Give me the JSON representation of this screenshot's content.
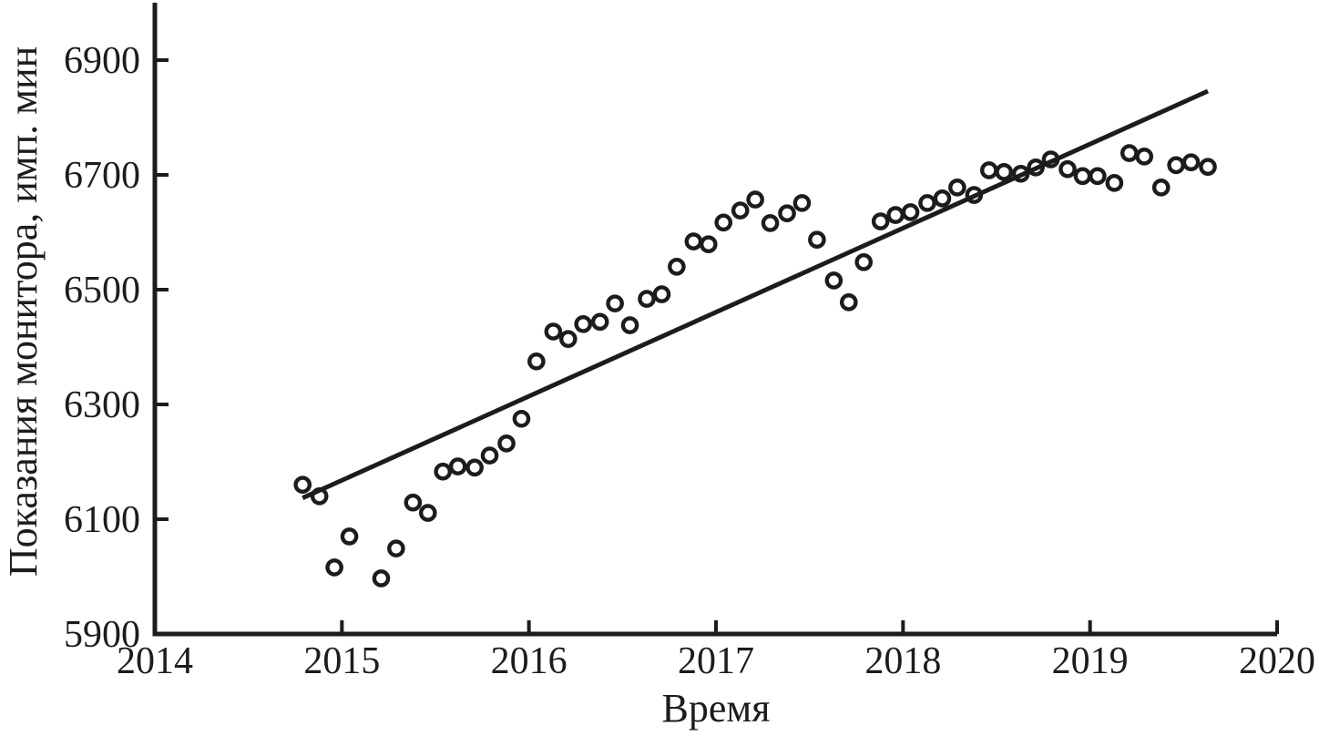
{
  "chart_data": {
    "type": "scatter",
    "title": "",
    "xlabel": "Время",
    "ylabel": "Показания монитора, имп. мин",
    "xlim": [
      2014,
      2020
    ],
    "ylim": [
      5900,
      7000
    ],
    "x_ticks": [
      2014,
      2015,
      2016,
      2017,
      2018,
      2019,
      2020
    ],
    "y_ticks": [
      5900,
      6100,
      6300,
      6500,
      6700,
      6900
    ],
    "grid": false,
    "legend": "none",
    "marker": "open-circle",
    "colors": {
      "ink": "#1c1c1c",
      "background": "#ffffff"
    },
    "scatter_points": [
      [
        2014.79,
        6160
      ],
      [
        2014.88,
        6140
      ],
      [
        2014.96,
        6016
      ],
      [
        2015.04,
        6070
      ],
      [
        2015.21,
        5997
      ],
      [
        2015.29,
        6049
      ],
      [
        2015.38,
        6129
      ],
      [
        2015.46,
        6111
      ],
      [
        2015.54,
        6183
      ],
      [
        2015.62,
        6192
      ],
      [
        2015.71,
        6190
      ],
      [
        2015.79,
        6211
      ],
      [
        2015.88,
        6232
      ],
      [
        2015.96,
        6275
      ],
      [
        2016.04,
        6375
      ],
      [
        2016.13,
        6427
      ],
      [
        2016.21,
        6414
      ],
      [
        2016.29,
        6440
      ],
      [
        2016.38,
        6444
      ],
      [
        2016.46,
        6476
      ],
      [
        2016.54,
        6438
      ],
      [
        2016.63,
        6484
      ],
      [
        2016.71,
        6492
      ],
      [
        2016.79,
        6540
      ],
      [
        2016.88,
        6584
      ],
      [
        2016.96,
        6579
      ],
      [
        2017.04,
        6617
      ],
      [
        2017.13,
        6638
      ],
      [
        2017.21,
        6657
      ],
      [
        2017.29,
        6616
      ],
      [
        2017.38,
        6633
      ],
      [
        2017.46,
        6651
      ],
      [
        2017.54,
        6587
      ],
      [
        2017.63,
        6516
      ],
      [
        2017.71,
        6478
      ],
      [
        2017.79,
        6548
      ],
      [
        2017.88,
        6619
      ],
      [
        2017.96,
        6630
      ],
      [
        2018.04,
        6635
      ],
      [
        2018.13,
        6651
      ],
      [
        2018.21,
        6659
      ],
      [
        2018.29,
        6678
      ],
      [
        2018.38,
        6665
      ],
      [
        2018.46,
        6708
      ],
      [
        2018.54,
        6705
      ],
      [
        2018.63,
        6702
      ],
      [
        2018.71,
        6713
      ],
      [
        2018.79,
        6727
      ],
      [
        2018.88,
        6710
      ],
      [
        2018.96,
        6698
      ],
      [
        2019.04,
        6698
      ],
      [
        2019.13,
        6686
      ],
      [
        2019.21,
        6738
      ],
      [
        2019.29,
        6732
      ],
      [
        2019.38,
        6678
      ],
      [
        2019.46,
        6717
      ],
      [
        2019.54,
        6722
      ],
      [
        2019.63,
        6714
      ]
    ],
    "trend_line": {
      "x1": 2014.79,
      "y1": 6137,
      "x2": 2019.63,
      "y2": 6846
    }
  }
}
